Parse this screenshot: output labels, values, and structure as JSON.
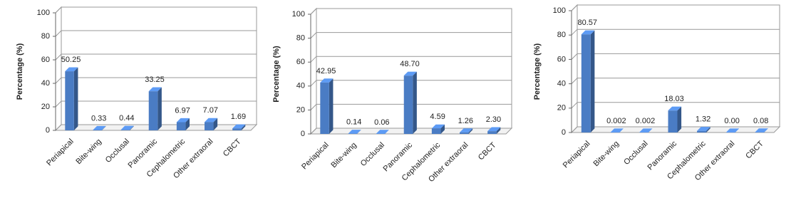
{
  "chart_data": [
    {
      "type": "bar3d",
      "y_label": "Percentage (%)",
      "categories": [
        "Periapical",
        "Bite-wing",
        "Occlusal",
        "Panoramic",
        "Cephalometric",
        "Other extraoral",
        "CBCT"
      ],
      "values": [
        50.25,
        0.33,
        0.44,
        33.25,
        6.97,
        7.07,
        1.69
      ],
      "value_labels": [
        "50.25",
        "0.33",
        "0.44",
        "33.25",
        "6.97",
        "7.07",
        "1.69"
      ],
      "color": "#4a7cc4",
      "ylim": [
        0,
        100
      ],
      "yticks": [
        0,
        20,
        40,
        60,
        80,
        100
      ],
      "grid": true
    },
    {
      "type": "bar3d",
      "y_label": "Percentage (%)",
      "categories": [
        "Periapical",
        "Bite-wing",
        "Occlusal",
        "Panoramic",
        "Cephalometric",
        "Other extraoral",
        "CBCT"
      ],
      "values": [
        42.95,
        0.14,
        0.06,
        48.7,
        4.59,
        1.26,
        2.3
      ],
      "value_labels": [
        "42.95",
        "0.14",
        "0.06",
        "48.70",
        "4.59",
        "1.26",
        "2.30"
      ],
      "color": "#4a7cc4",
      "ylim": [
        0,
        100
      ],
      "yticks": [
        0,
        20,
        40,
        60,
        80,
        100
      ],
      "grid": true
    },
    {
      "type": "bar3d",
      "y_label": "Percentage (%)",
      "categories": [
        "Periapical",
        "Bite-wing",
        "Occlusal",
        "Panoramic",
        "Cephalometric",
        "Other extraoral",
        "CBCT"
      ],
      "values": [
        80.57,
        0.002,
        0.002,
        18.03,
        1.32,
        0,
        0.08
      ],
      "value_labels": [
        "80.57",
        "0.002",
        "0.002",
        "18.03",
        "1.32",
        "0.00",
        "0.08"
      ],
      "color": "#4a7cc4",
      "ylim": [
        0,
        100
      ],
      "yticks": [
        0,
        20,
        40,
        60,
        80,
        100
      ],
      "grid": true
    }
  ]
}
